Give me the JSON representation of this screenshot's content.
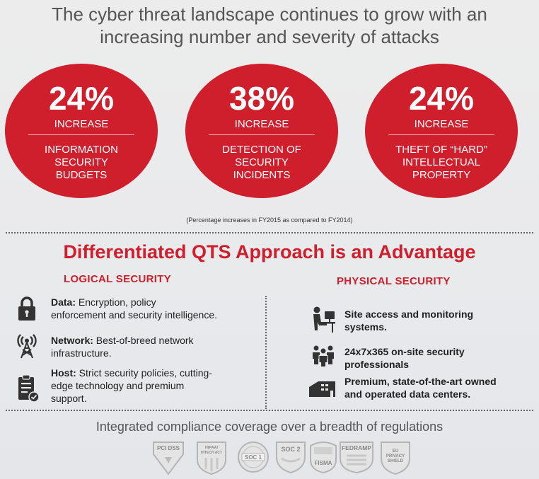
{
  "headline": {
    "line1": "The cyber threat landscape continues to grow with an",
    "line2": "increasing number and severity of attacks"
  },
  "stats": [
    {
      "percent": "24%",
      "label": "INCREASE",
      "desc": [
        "INFORMATION",
        "SECURITY",
        "BUDGETS"
      ]
    },
    {
      "percent": "38%",
      "label": "INCREASE",
      "desc": [
        "DETECTION OF",
        "SECURITY",
        "INCIDENTS"
      ]
    },
    {
      "percent": "24%",
      "label": "INCREASE",
      "desc": [
        "THEFT OF “HARD”",
        "INTELLECTUAL",
        "PROPERTY"
      ]
    }
  ],
  "footnote": "(Percentage increases in FY2015 as compared to FY2014)",
  "section_title": "Differentiated QTS Approach is an Advantage",
  "logical": {
    "heading": "LOGICAL SECURITY",
    "items": [
      {
        "title": "Data:",
        "lines": [
          " Encryption, policy",
          "enforcement and security intelligence."
        ]
      },
      {
        "title": "Network:",
        "lines": [
          " Best-of-breed network",
          "infrastructure."
        ]
      },
      {
        "title": "Host:",
        "lines": [
          " Strict security policies, cutting-",
          "edge technology and premium",
          "support."
        ]
      }
    ]
  },
  "physical": {
    "heading": "PHYSICAL SECURITY",
    "items": [
      {
        "lines": [
          "Site access and monitoring",
          "systems."
        ]
      },
      {
        "lines": [
          "24x7x365 on-site security",
          "professionals"
        ]
      },
      {
        "lines": [
          "Premium, state-of-the-art owned",
          "and operated data centers."
        ]
      }
    ]
  },
  "compliance_title": "Integrated compliance coverage over a breadth of regulations",
  "badges": [
    {
      "lines": [
        "PCI DSS"
      ]
    },
    {
      "lines": [
        "HIPAA/",
        "HITECH ACT"
      ]
    },
    {
      "lines": [
        "SOC 1"
      ]
    },
    {
      "lines": [
        "SOC 2"
      ]
    },
    {
      "lines": [
        "FISMA"
      ]
    },
    {
      "lines": [
        "FEDRAMP"
      ]
    },
    {
      "lines": [
        "EU",
        "PRIVACY",
        "SHIELD"
      ]
    }
  ],
  "colors": {
    "accent": "#cf1f2d",
    "text": "#222222",
    "muted": "#555555"
  }
}
